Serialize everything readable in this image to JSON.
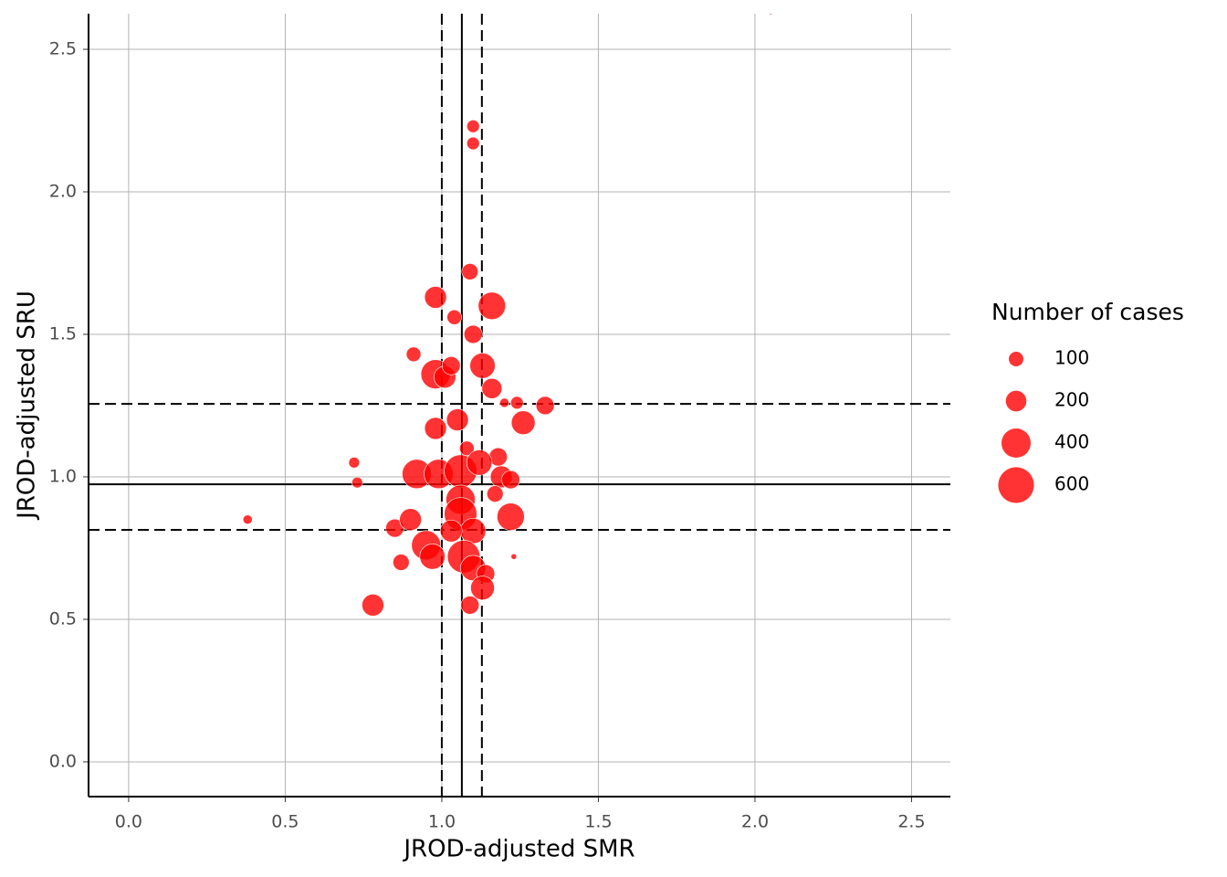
{
  "chart_data": {
    "type": "bubble",
    "x_label": "JROD-adjusted SMR",
    "y_label": "JROD-adjusted SRU",
    "xlim": [
      -0.128,
      2.624
    ],
    "ylim": [
      -0.122,
      2.625
    ],
    "xticks": [
      {
        "value": 0,
        "label": "0.0"
      },
      0.5,
      {
        "value": 1,
        "label": "1.0"
      },
      1.5,
      {
        "value": 2,
        "label": "2.0"
      },
      2.5
    ],
    "yticks": [
      {
        "value": 0,
        "label": "0.0"
      },
      0.5,
      {
        "value": 1,
        "label": "1.0"
      },
      1.5,
      {
        "value": 2,
        "label": "2.0"
      },
      2.5
    ],
    "grid": true,
    "vlines": [
      {
        "value": 1.064,
        "dashed": false
      },
      {
        "value": 1.0,
        "dashed": true
      },
      {
        "value": 1.128,
        "dashed": true
      }
    ],
    "hlines": [
      {
        "value": 0.974,
        "dashed": false
      },
      {
        "value": 1.256,
        "dashed": true
      },
      {
        "value": 0.814,
        "dashed": true
      }
    ],
    "series": [
      {
        "name": "Number of cases",
        "color": "#ff0000",
        "x": [
          1.1,
          1.1,
          1.09,
          1.16,
          0.98,
          1.04,
          1.1,
          0.91,
          0.98,
          1.01,
          1.03,
          1.13,
          1.16,
          1.2,
          1.24,
          1.33,
          1.26,
          1.05,
          0.98,
          1.08,
          1.18,
          0.72,
          0.73,
          0.92,
          0.99,
          1.06,
          1.12,
          1.19,
          1.22,
          1.17,
          1.06,
          1.22,
          0.38,
          0.85,
          0.9,
          1.06,
          1.1,
          1.03,
          0.95,
          0.97,
          0.87,
          1.07,
          1.1,
          1.14,
          1.13,
          1.23,
          1.09,
          0.78,
          2.05
        ],
        "values": [
          2.23,
          2.17,
          1.72,
          1.6,
          1.63,
          1.56,
          1.5,
          1.43,
          1.36,
          1.35,
          1.39,
          1.39,
          1.31,
          1.26,
          1.26,
          1.25,
          1.19,
          1.2,
          1.17,
          1.1,
          1.07,
          1.05,
          0.98,
          1.01,
          1.01,
          1.02,
          1.05,
          1.0,
          0.99,
          0.94,
          0.92,
          0.86,
          0.85,
          0.82,
          0.85,
          0.87,
          0.81,
          0.81,
          0.76,
          0.72,
          0.7,
          0.72,
          0.68,
          0.66,
          0.61,
          0.72,
          0.55,
          0.55,
          2.63
        ],
        "sizes": [
          75,
          75,
          125,
          350,
          225,
          100,
          155,
          100,
          400,
          225,
          155,
          300,
          190,
          40,
          75,
          155,
          265,
          225,
          225,
          100,
          155,
          55,
          55,
          400,
          400,
          500,
          300,
          225,
          155,
          125,
          400,
          350,
          40,
          155,
          225,
          500,
          300,
          225,
          400,
          300,
          125,
          500,
          300,
          155,
          265,
          15,
          155,
          225,
          10
        ]
      }
    ],
    "size_legend": {
      "title": "Number of cases",
      "values": [
        100,
        200,
        400,
        600
      ]
    }
  }
}
